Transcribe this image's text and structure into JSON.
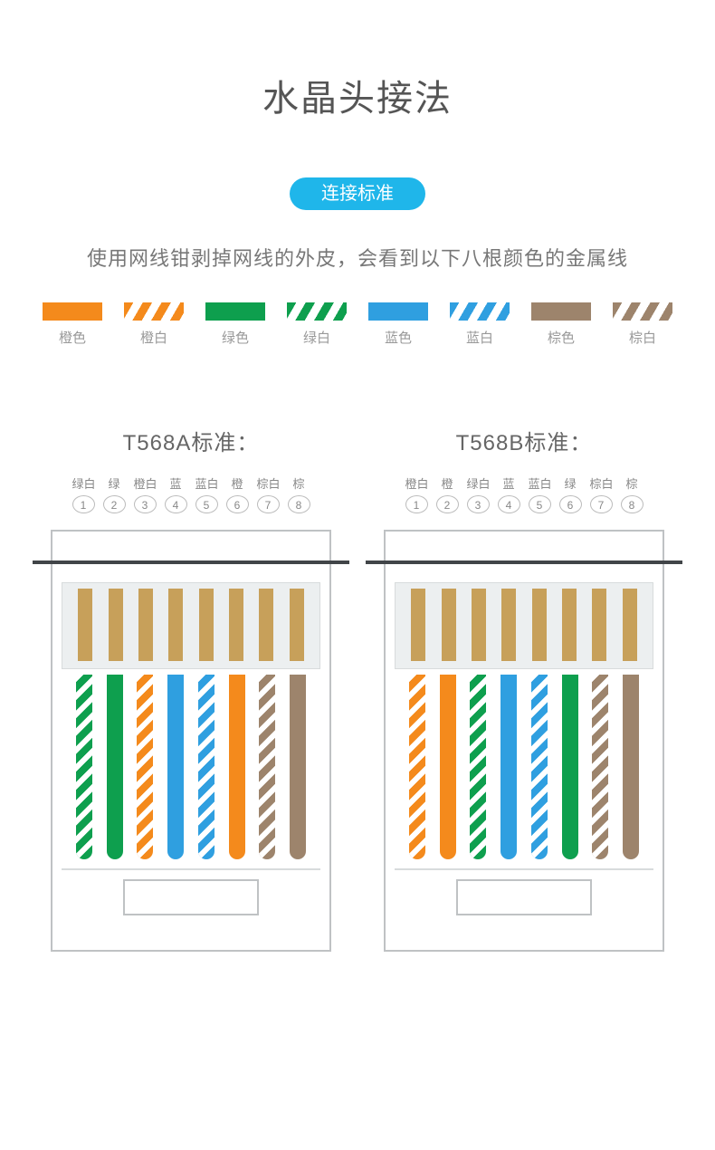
{
  "title": "水晶头接法",
  "badge": {
    "text": "连接标准",
    "bg": "#1fb6ea"
  },
  "description": "使用网线钳剥掉网线的外皮，会看到以下八根颜色的金属线",
  "colors": {
    "orange": "#f48a1c",
    "green": "#0e9f4e",
    "blue": "#2f9fe0",
    "brown": "#9d846c",
    "contact": "#c7a05a",
    "outline": "#bfc2c4",
    "text_muted": "#888888"
  },
  "legend": [
    {
      "label": "橙色",
      "key": "orange",
      "striped": false
    },
    {
      "label": "橙白",
      "key": "orange",
      "striped": true
    },
    {
      "label": "绿色",
      "key": "green",
      "striped": false
    },
    {
      "label": "绿白",
      "key": "green",
      "striped": true
    },
    {
      "label": "蓝色",
      "key": "blue",
      "striped": false
    },
    {
      "label": "蓝白",
      "key": "blue",
      "striped": true
    },
    {
      "label": "棕色",
      "key": "brown",
      "striped": false
    },
    {
      "label": "棕白",
      "key": "brown",
      "striped": true
    }
  ],
  "standards": [
    {
      "title": "T568A标准：",
      "pins": [
        {
          "n": "1",
          "label": "绿白",
          "key": "green",
          "striped": true
        },
        {
          "n": "2",
          "label": "绿",
          "key": "green",
          "striped": false
        },
        {
          "n": "3",
          "label": "橙白",
          "key": "orange",
          "striped": true
        },
        {
          "n": "4",
          "label": "蓝",
          "key": "blue",
          "striped": false
        },
        {
          "n": "5",
          "label": "蓝白",
          "key": "blue",
          "striped": true
        },
        {
          "n": "6",
          "label": "橙",
          "key": "orange",
          "striped": false
        },
        {
          "n": "7",
          "label": "棕白",
          "key": "brown",
          "striped": true
        },
        {
          "n": "8",
          "label": "棕",
          "key": "brown",
          "striped": false
        }
      ]
    },
    {
      "title": "T568B标准：",
      "pins": [
        {
          "n": "1",
          "label": "橙白",
          "key": "orange",
          "striped": true
        },
        {
          "n": "2",
          "label": "橙",
          "key": "orange",
          "striped": false
        },
        {
          "n": "3",
          "label": "绿白",
          "key": "green",
          "striped": true
        },
        {
          "n": "4",
          "label": "蓝",
          "key": "blue",
          "striped": false
        },
        {
          "n": "5",
          "label": "蓝白",
          "key": "blue",
          "striped": true
        },
        {
          "n": "6",
          "label": "绿",
          "key": "green",
          "striped": false
        },
        {
          "n": "7",
          "label": "棕白",
          "key": "brown",
          "striped": true
        },
        {
          "n": "8",
          "label": "棕",
          "key": "brown",
          "striped": false
        }
      ]
    }
  ]
}
